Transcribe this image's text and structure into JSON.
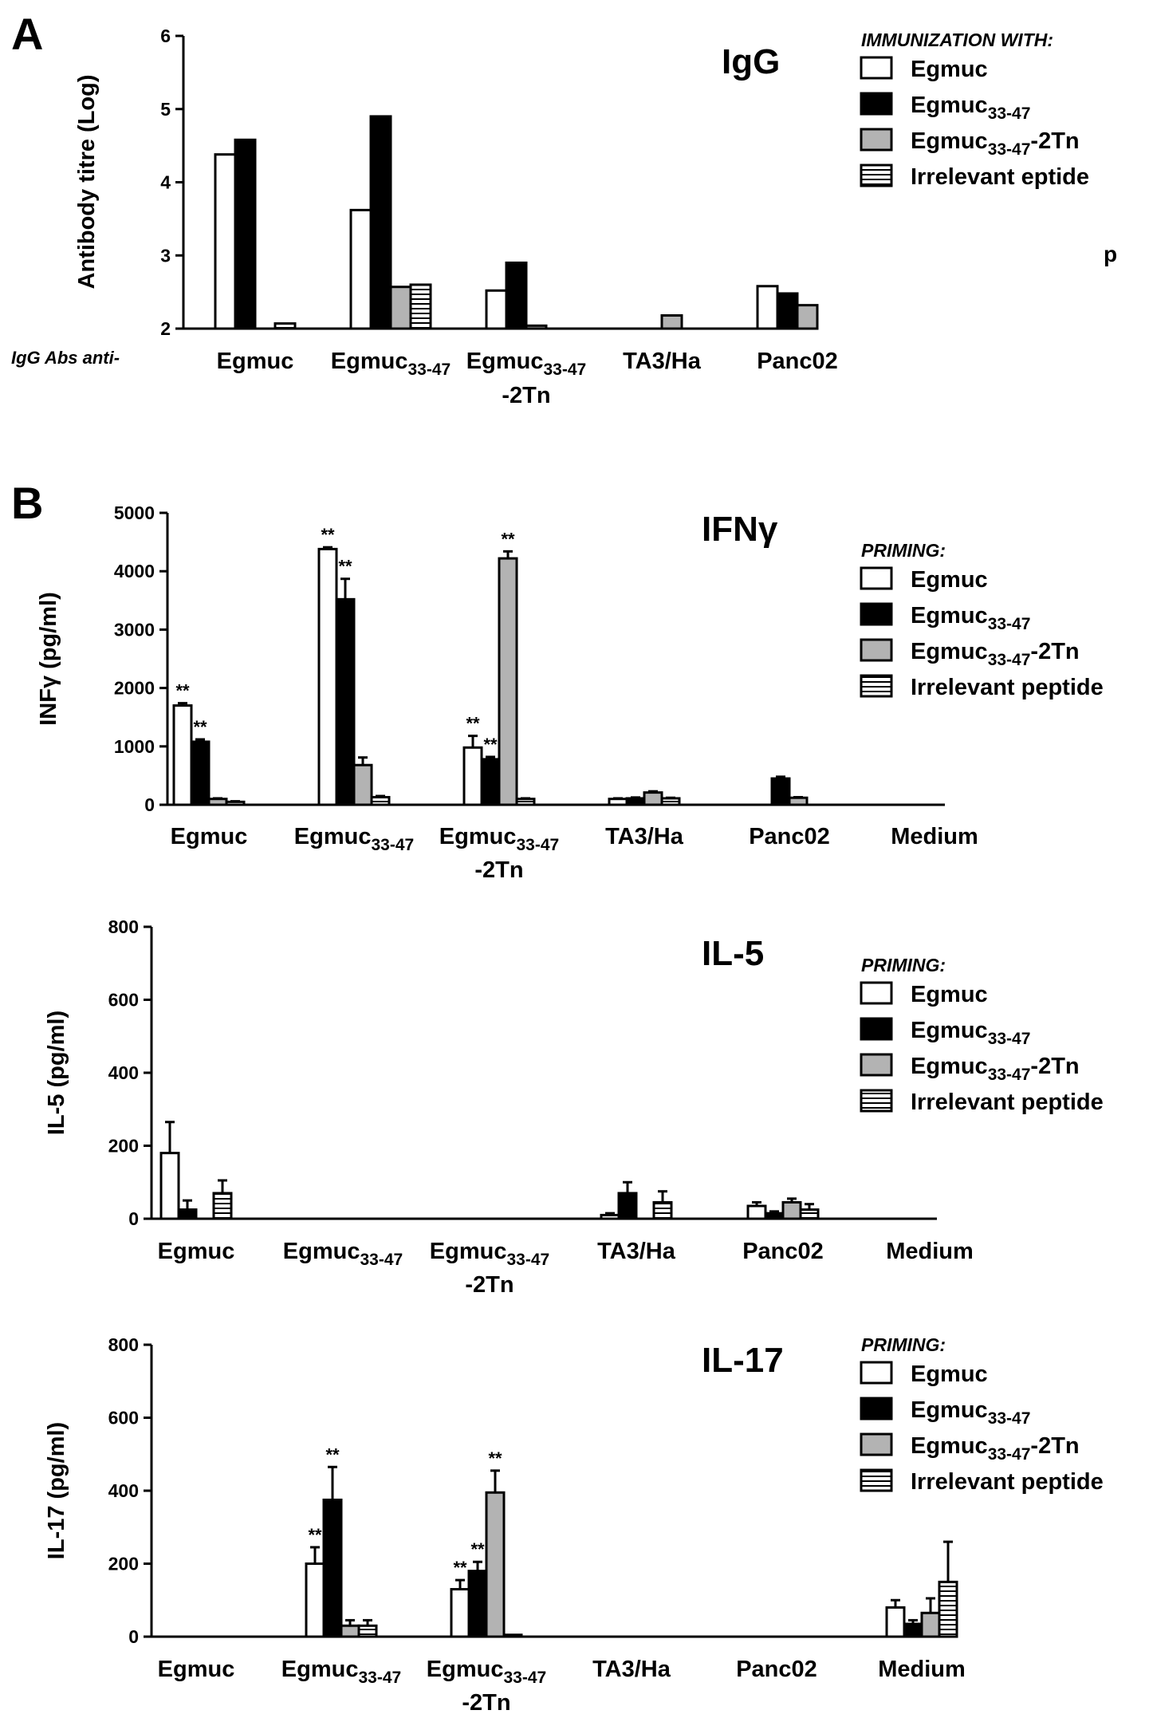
{
  "panel_labels": [
    "A",
    "B"
  ],
  "panel_a_note": "p",
  "colors": {
    "Egmuc": "#ffffff",
    "Egmuc33-47": "#000000",
    "Egmuc33-47-2Tn": "#b3b3b3",
    "Irrelevant peptide": "hatched"
  },
  "chart_data": [
    {
      "type": "bar",
      "panel": "A",
      "title": "IgG",
      "ylabel": "Antibody  titre (Log)",
      "xlabel": "IgG Abs anti-",
      "ylim": [
        2,
        6
      ],
      "yticks": [
        "2",
        "3",
        "4",
        "5",
        "6"
      ],
      "categories": [
        {
          "main": "Egmuc",
          "sub": "",
          "suffix": "",
          "line2": ""
        },
        {
          "main": "Egmuc",
          "sub": "33-47",
          "suffix": "",
          "line2": ""
        },
        {
          "main": "Egmuc",
          "sub": "33-47",
          "suffix": "",
          "line2": "-2Tn"
        },
        {
          "main": "TA3/Ha",
          "sub": "",
          "suffix": "",
          "line2": ""
        },
        {
          "main": "Panc02",
          "sub": "",
          "suffix": "",
          "line2": ""
        }
      ],
      "legend_title": "IMMUNIZATION WITH:",
      "legend": [
        {
          "main": "Egmuc",
          "sub": "",
          "suffix": ""
        },
        {
          "main": "Egmuc",
          "sub": "33-47",
          "suffix": ""
        },
        {
          "main": "Egmuc",
          "sub": "33-47",
          "suffix": "-2Tn"
        },
        {
          "main": "Irrelevant    eptide",
          "sub": "",
          "suffix": ""
        }
      ],
      "series": [
        {
          "values": [
            4.38,
            3.62,
            2.52,
            2.0,
            2.58
          ],
          "errors": [
            0,
            0,
            0,
            0,
            0
          ]
        },
        {
          "values": [
            4.58,
            4.9,
            2.9,
            2.0,
            2.48
          ],
          "errors": [
            0,
            0,
            0,
            0,
            0
          ]
        },
        {
          "values": [
            2.0,
            2.57,
            2.04,
            2.18,
            2.32
          ],
          "errors": [
            0,
            0,
            0,
            0,
            0
          ]
        },
        {
          "values": [
            2.07,
            2.6,
            2.0,
            2.0,
            2.0
          ],
          "errors": [
            0,
            0,
            0,
            0,
            0
          ]
        }
      ],
      "significance": []
    },
    {
      "type": "bar",
      "panel": "B",
      "title": "IFNγ",
      "ylabel": "INFγ (pg/ml)",
      "xlabel": "",
      "ylim": [
        0,
        5000
      ],
      "yticks": [
        "0",
        "1000",
        "2000",
        "3000",
        "4000",
        "5000"
      ],
      "categories": [
        {
          "main": "Egmuc",
          "sub": "",
          "suffix": "",
          "line2": ""
        },
        {
          "main": "Egmuc",
          "sub": "33-47",
          "suffix": "",
          "line2": ""
        },
        {
          "main": "Egmuc",
          "sub": "33-47",
          "suffix": "",
          "line2": "-2Tn"
        },
        {
          "main": "TA3/Ha",
          "sub": "",
          "suffix": "",
          "line2": ""
        },
        {
          "main": "Panc02",
          "sub": "",
          "suffix": "",
          "line2": ""
        },
        {
          "main": "Medium",
          "sub": "",
          "suffix": "",
          "line2": ""
        }
      ],
      "legend_title": "PRIMING:",
      "legend": [
        {
          "main": "Egmuc",
          "sub": "",
          "suffix": ""
        },
        {
          "main": "Egmuc",
          "sub": "33-47",
          "suffix": ""
        },
        {
          "main": "Egmuc",
          "sub": "33-47",
          "suffix": "-2Tn"
        },
        {
          "main": "Irrelevant peptide",
          "sub": "",
          "suffix": ""
        }
      ],
      "series": [
        {
          "values": [
            1700,
            4380,
            980,
            100,
            0,
            0
          ],
          "errors": [
            40,
            30,
            200,
            10,
            0,
            0
          ]
        },
        {
          "values": [
            1080,
            3520,
            780,
            110,
            450,
            0
          ],
          "errors": [
            40,
            350,
            40,
            15,
            30,
            0
          ]
        },
        {
          "values": [
            100,
            680,
            4220,
            210,
            120,
            0
          ],
          "errors": [
            10,
            130,
            120,
            20,
            10,
            0
          ]
        },
        {
          "values": [
            50,
            130,
            100,
            110,
            0,
            0
          ],
          "errors": [
            10,
            20,
            10,
            10,
            0,
            0
          ]
        }
      ],
      "significance": [
        {
          "category": 0,
          "series": 0,
          "label": "**"
        },
        {
          "category": 0,
          "series": 1,
          "label": "**"
        },
        {
          "category": 1,
          "series": 0,
          "label": "**"
        },
        {
          "category": 1,
          "series": 1,
          "label": "**"
        },
        {
          "category": 2,
          "series": 0,
          "label": "**"
        },
        {
          "category": 2,
          "series": 1,
          "label": "**"
        },
        {
          "category": 2,
          "series": 2,
          "label": "**"
        }
      ]
    },
    {
      "type": "bar",
      "panel": "B",
      "title": "IL-5",
      "ylabel": "IL-5 (pg/ml)",
      "xlabel": "",
      "ylim": [
        0,
        800
      ],
      "yticks": [
        "0",
        "200",
        "400",
        "600",
        "800"
      ],
      "categories": [
        {
          "main": "Egmuc",
          "sub": "",
          "suffix": "",
          "line2": ""
        },
        {
          "main": "Egmuc",
          "sub": "33-47",
          "suffix": "",
          "line2": ""
        },
        {
          "main": "Egmuc",
          "sub": "33-47",
          "suffix": "",
          "line2": "-2Tn"
        },
        {
          "main": "TA3/Ha",
          "sub": "",
          "suffix": "",
          "line2": ""
        },
        {
          "main": "Panc02",
          "sub": "",
          "suffix": "",
          "line2": ""
        },
        {
          "main": "Medium",
          "sub": "",
          "suffix": "",
          "line2": ""
        }
      ],
      "legend_title": "PRIMING:",
      "legend": [
        {
          "main": "Egmuc",
          "sub": "",
          "suffix": ""
        },
        {
          "main": "Egmuc",
          "sub": "33-47",
          "suffix": ""
        },
        {
          "main": "Egmuc",
          "sub": "33-47",
          "suffix": "-2Tn"
        },
        {
          "main": "Irrelevant peptide",
          "sub": "",
          "suffix": ""
        }
      ],
      "series": [
        {
          "values": [
            180,
            0,
            0,
            10,
            35,
            0
          ],
          "errors": [
            85,
            0,
            0,
            5,
            10,
            0
          ]
        },
        {
          "values": [
            25,
            0,
            0,
            70,
            15,
            0
          ],
          "errors": [
            25,
            0,
            0,
            30,
            5,
            0
          ]
        },
        {
          "values": [
            0,
            0,
            0,
            0,
            45,
            0
          ],
          "errors": [
            0,
            0,
            0,
            0,
            10,
            0
          ]
        },
        {
          "values": [
            70,
            0,
            0,
            45,
            25,
            0
          ],
          "errors": [
            35,
            0,
            0,
            30,
            15,
            0
          ]
        }
      ],
      "significance": []
    },
    {
      "type": "bar",
      "panel": "B",
      "title": "IL-17",
      "ylabel": "IL-17 (pg/ml)",
      "xlabel": "",
      "ylim": [
        0,
        800
      ],
      "yticks": [
        "0",
        "200",
        "400",
        "600",
        "800"
      ],
      "categories": [
        {
          "main": "Egmuc",
          "sub": "",
          "suffix": "",
          "line2": ""
        },
        {
          "main": "Egmuc",
          "sub": "33-47",
          "suffix": "",
          "line2": ""
        },
        {
          "main": "Egmuc",
          "sub": "33-47",
          "suffix": "",
          "line2": "-2Tn"
        },
        {
          "main": "TA3/Ha",
          "sub": "",
          "suffix": "",
          "line2": ""
        },
        {
          "main": "Panc02",
          "sub": "",
          "suffix": "",
          "line2": ""
        },
        {
          "main": "Medium",
          "sub": "",
          "suffix": "",
          "line2": ""
        }
      ],
      "legend_title": "PRIMING:",
      "legend": [
        {
          "main": "Egmuc",
          "sub": "",
          "suffix": ""
        },
        {
          "main": "Egmuc",
          "sub": "33-47",
          "suffix": ""
        },
        {
          "main": "Egmuc",
          "sub": "33-47",
          "suffix": "-2Tn"
        },
        {
          "main": "Irrelevant peptide",
          "sub": "",
          "suffix": ""
        }
      ],
      "series": [
        {
          "values": [
            0,
            200,
            130,
            0,
            0,
            80
          ],
          "errors": [
            0,
            45,
            25,
            0,
            0,
            20
          ]
        },
        {
          "values": [
            0,
            375,
            180,
            0,
            0,
            35
          ],
          "errors": [
            0,
            90,
            25,
            0,
            0,
            10
          ]
        },
        {
          "values": [
            0,
            30,
            395,
            0,
            0,
            65
          ],
          "errors": [
            0,
            15,
            60,
            0,
            0,
            40
          ]
        },
        {
          "values": [
            0,
            30,
            5,
            0,
            0,
            150
          ],
          "errors": [
            0,
            15,
            0,
            0,
            0,
            110
          ]
        }
      ],
      "significance": [
        {
          "category": 1,
          "series": 0,
          "label": "**"
        },
        {
          "category": 1,
          "series": 1,
          "label": "**"
        },
        {
          "category": 2,
          "series": 0,
          "label": "**"
        },
        {
          "category": 2,
          "series": 1,
          "label": "**"
        },
        {
          "category": 2,
          "series": 2,
          "label": "**"
        }
      ]
    }
  ]
}
